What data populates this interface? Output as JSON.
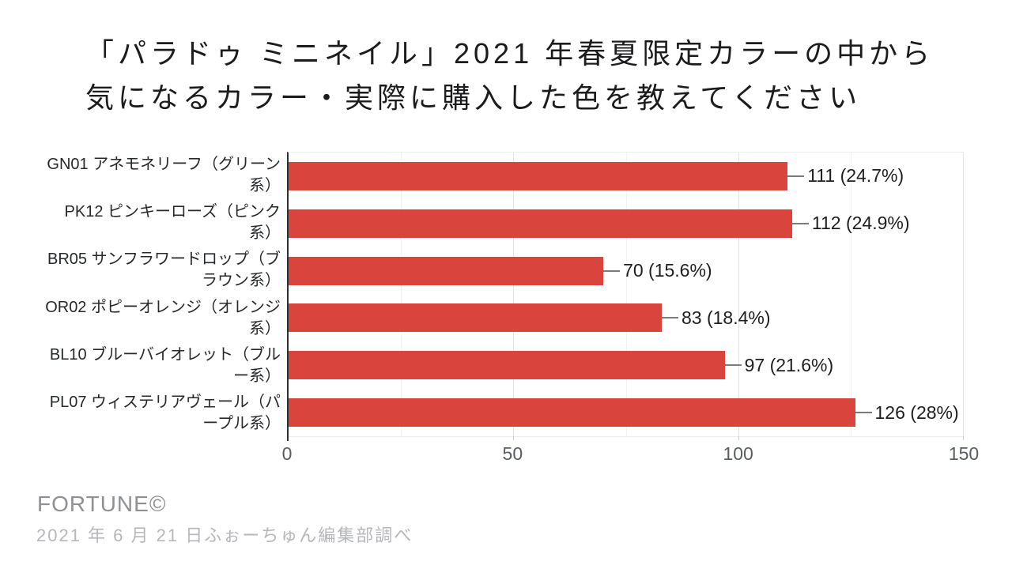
{
  "title": {
    "line1": "「パラドゥ ミニネイル」2021 年春夏限定カラーの中から",
    "line2": "気になるカラー・実際に購入した色を教えてください"
  },
  "chart_data": {
    "type": "bar",
    "orientation": "horizontal",
    "title": "「パラドゥ ミニネイル」2021 年春夏限定カラーの中から気になるカラー・実際に購入した色を教えてください",
    "categories": [
      "GN01 アネモネリーフ（グリーン系）",
      "PK12 ピンキーローズ（ピンク系）",
      "BR05 サンフラワードロップ（ブラウン系）",
      "OR02 ポピーオレンジ（オレンジ系）",
      "BL10 ブルーバイオレット（ブルー系）",
      "PL07 ウィステリアヴェール（パープル系）"
    ],
    "values": [
      111,
      112,
      70,
      83,
      97,
      126
    ],
    "percents": [
      24.7,
      24.9,
      15.6,
      18.4,
      21.6,
      28
    ],
    "rows": [
      {
        "label_line1": "GN01 アネモネリーフ（グリーン",
        "label_line2": "系）",
        "value": 111,
        "value_label": "111 (24.7%)"
      },
      {
        "label_line1": "PK12 ピンキーローズ（ピンク",
        "label_line2": "系）",
        "value": 112,
        "value_label": "112 (24.9%)"
      },
      {
        "label_line1": "BR05 サンフラワードロップ（ブ",
        "label_line2": "ラウン系）",
        "value": 70,
        "value_label": "70 (15.6%)"
      },
      {
        "label_line1": "OR02 ポピーオレンジ（オレンジ",
        "label_line2": "系）",
        "value": 83,
        "value_label": "83 (18.4%)"
      },
      {
        "label_line1": "BL10 ブルーバイオレット（ブル",
        "label_line2": "ー系）",
        "value": 97,
        "value_label": "97 (21.6%)"
      },
      {
        "label_line1": "PL07 ウィステリアヴェール（パ",
        "label_line2": "ープル系）",
        "value": 126,
        "value_label": "126 (28%)"
      }
    ],
    "xticks": [
      "0",
      "50",
      "100",
      "150"
    ],
    "xlim": [
      0,
      150
    ],
    "xmax": 150,
    "bar_color": "#d9453c",
    "grid": true,
    "legend": false
  },
  "footer": {
    "brand": "FORTUNE©",
    "note": "2021 年 6 月 21 日ふぉーちゅん編集部調べ"
  }
}
